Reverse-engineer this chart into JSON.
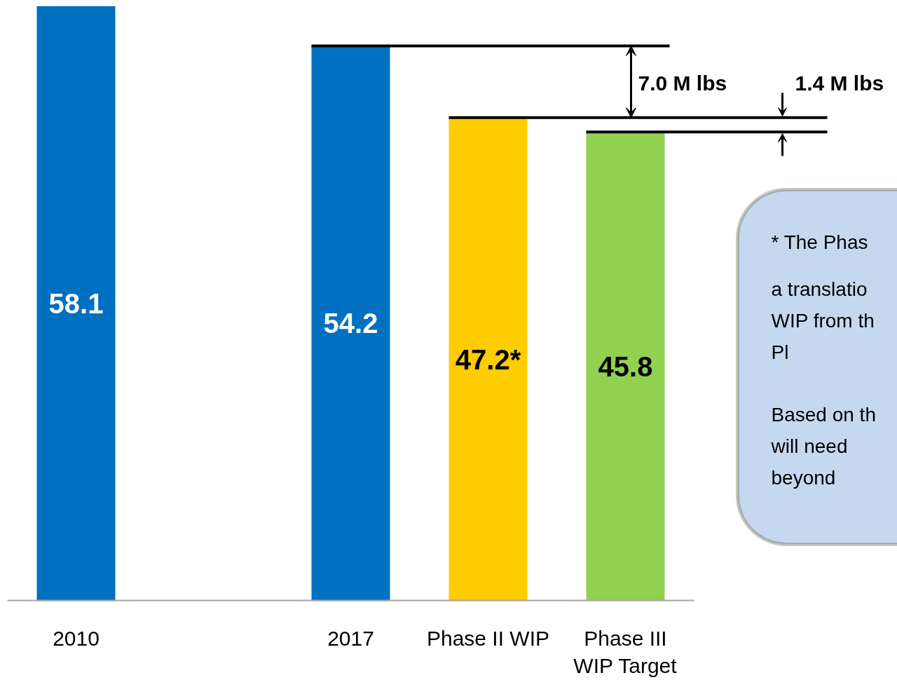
{
  "chart_data": {
    "type": "bar",
    "categories": [
      "2010",
      null,
      "2017",
      "Phase II WIP",
      "Phase III WIP Target"
    ],
    "values": [
      58.1,
      null,
      54.2,
      47.2,
      45.8
    ],
    "colors": [
      "#0070c0",
      "#0070c0",
      "#0070c0",
      "#ffcc00",
      "#92d050"
    ],
    "value_labels": [
      "58.1",
      null,
      "54.2",
      "47.2*",
      "45.8"
    ],
    "tick_labels": "x",
    "ref_lines": [
      {
        "axis": "y",
        "value": 54.2,
        "color": "#000000"
      },
      {
        "axis": "y",
        "value": 47.2,
        "color": "#000000"
      },
      {
        "axis": "y",
        "value": 45.8,
        "color": "#000000"
      }
    ],
    "annotations": [
      "7.0 M lbs",
      "1.4 M lbs",
      "* The Phas",
      "a translatio",
      "WIP from th",
      "Pl",
      "Based on th",
      "will need",
      "beyond"
    ]
  }
}
